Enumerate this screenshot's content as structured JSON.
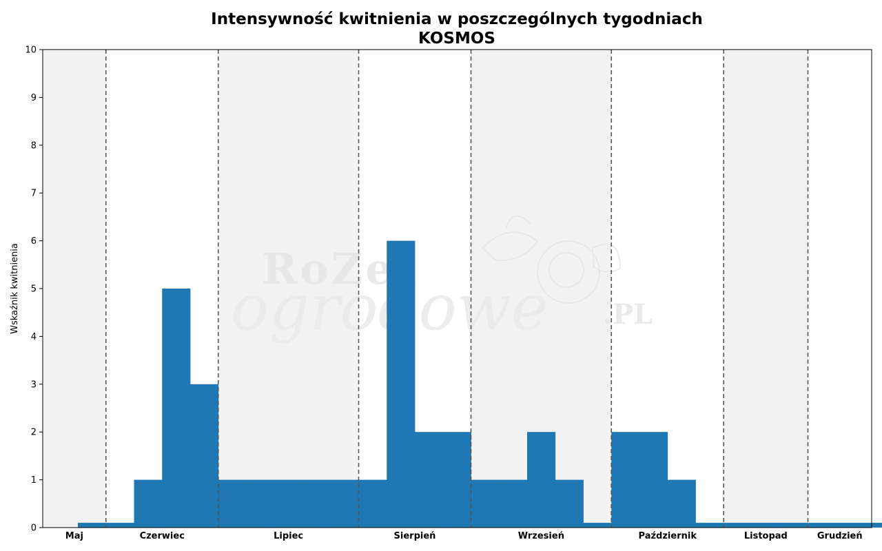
{
  "chart_data": {
    "type": "bar",
    "title": "Intensywność kwitnienia w poszczególnych tygodniach",
    "subtitle": "KOSMOS",
    "ylabel": "Wskaźnik kwitnienia",
    "xlabel": "",
    "ylim": [
      0,
      10
    ],
    "yticks": [
      "0",
      "1",
      "2",
      "3",
      "4",
      "5",
      "6",
      "7",
      "8",
      "9",
      "10"
    ],
    "grid": false,
    "watermark": {
      "line1": "RoZe",
      "line2": "ogrodowe",
      "line3": ".PL"
    },
    "weeks": 29,
    "values": [
      0.1,
      0.1,
      1,
      5,
      3,
      1,
      1,
      1,
      1,
      1,
      1,
      6,
      2,
      2,
      1,
      1,
      2,
      1,
      0.1,
      2,
      2,
      1,
      0.1,
      0.1,
      0.1,
      0.1,
      0.1,
      0.1,
      0.1
    ],
    "months": [
      {
        "name": "Maj",
        "start_week": 0,
        "end_week": 1.25,
        "shaded": true
      },
      {
        "name": "Czerwiec",
        "start_week": 1.25,
        "end_week": 5.25,
        "shaded": false
      },
      {
        "name": "Lipiec",
        "start_week": 5.25,
        "end_week": 10.25,
        "shaded": true
      },
      {
        "name": "Sierpień",
        "start_week": 10.25,
        "end_week": 14.25,
        "shaded": false
      },
      {
        "name": "Wrzesień",
        "start_week": 14.25,
        "end_week": 19.25,
        "shaded": true
      },
      {
        "name": "Październik",
        "start_week": 19.25,
        "end_week": 23.25,
        "shaded": false
      },
      {
        "name": "Listopad",
        "start_week": 23.25,
        "end_week": 26.25,
        "shaded": true
      },
      {
        "name": "Grudzień",
        "start_week": 26.25,
        "end_week": 29.5,
        "shaded": false
      }
    ],
    "colors": {
      "bar": "#1f77b4",
      "shade": "#f2f2f2",
      "divider": "#555555"
    }
  }
}
